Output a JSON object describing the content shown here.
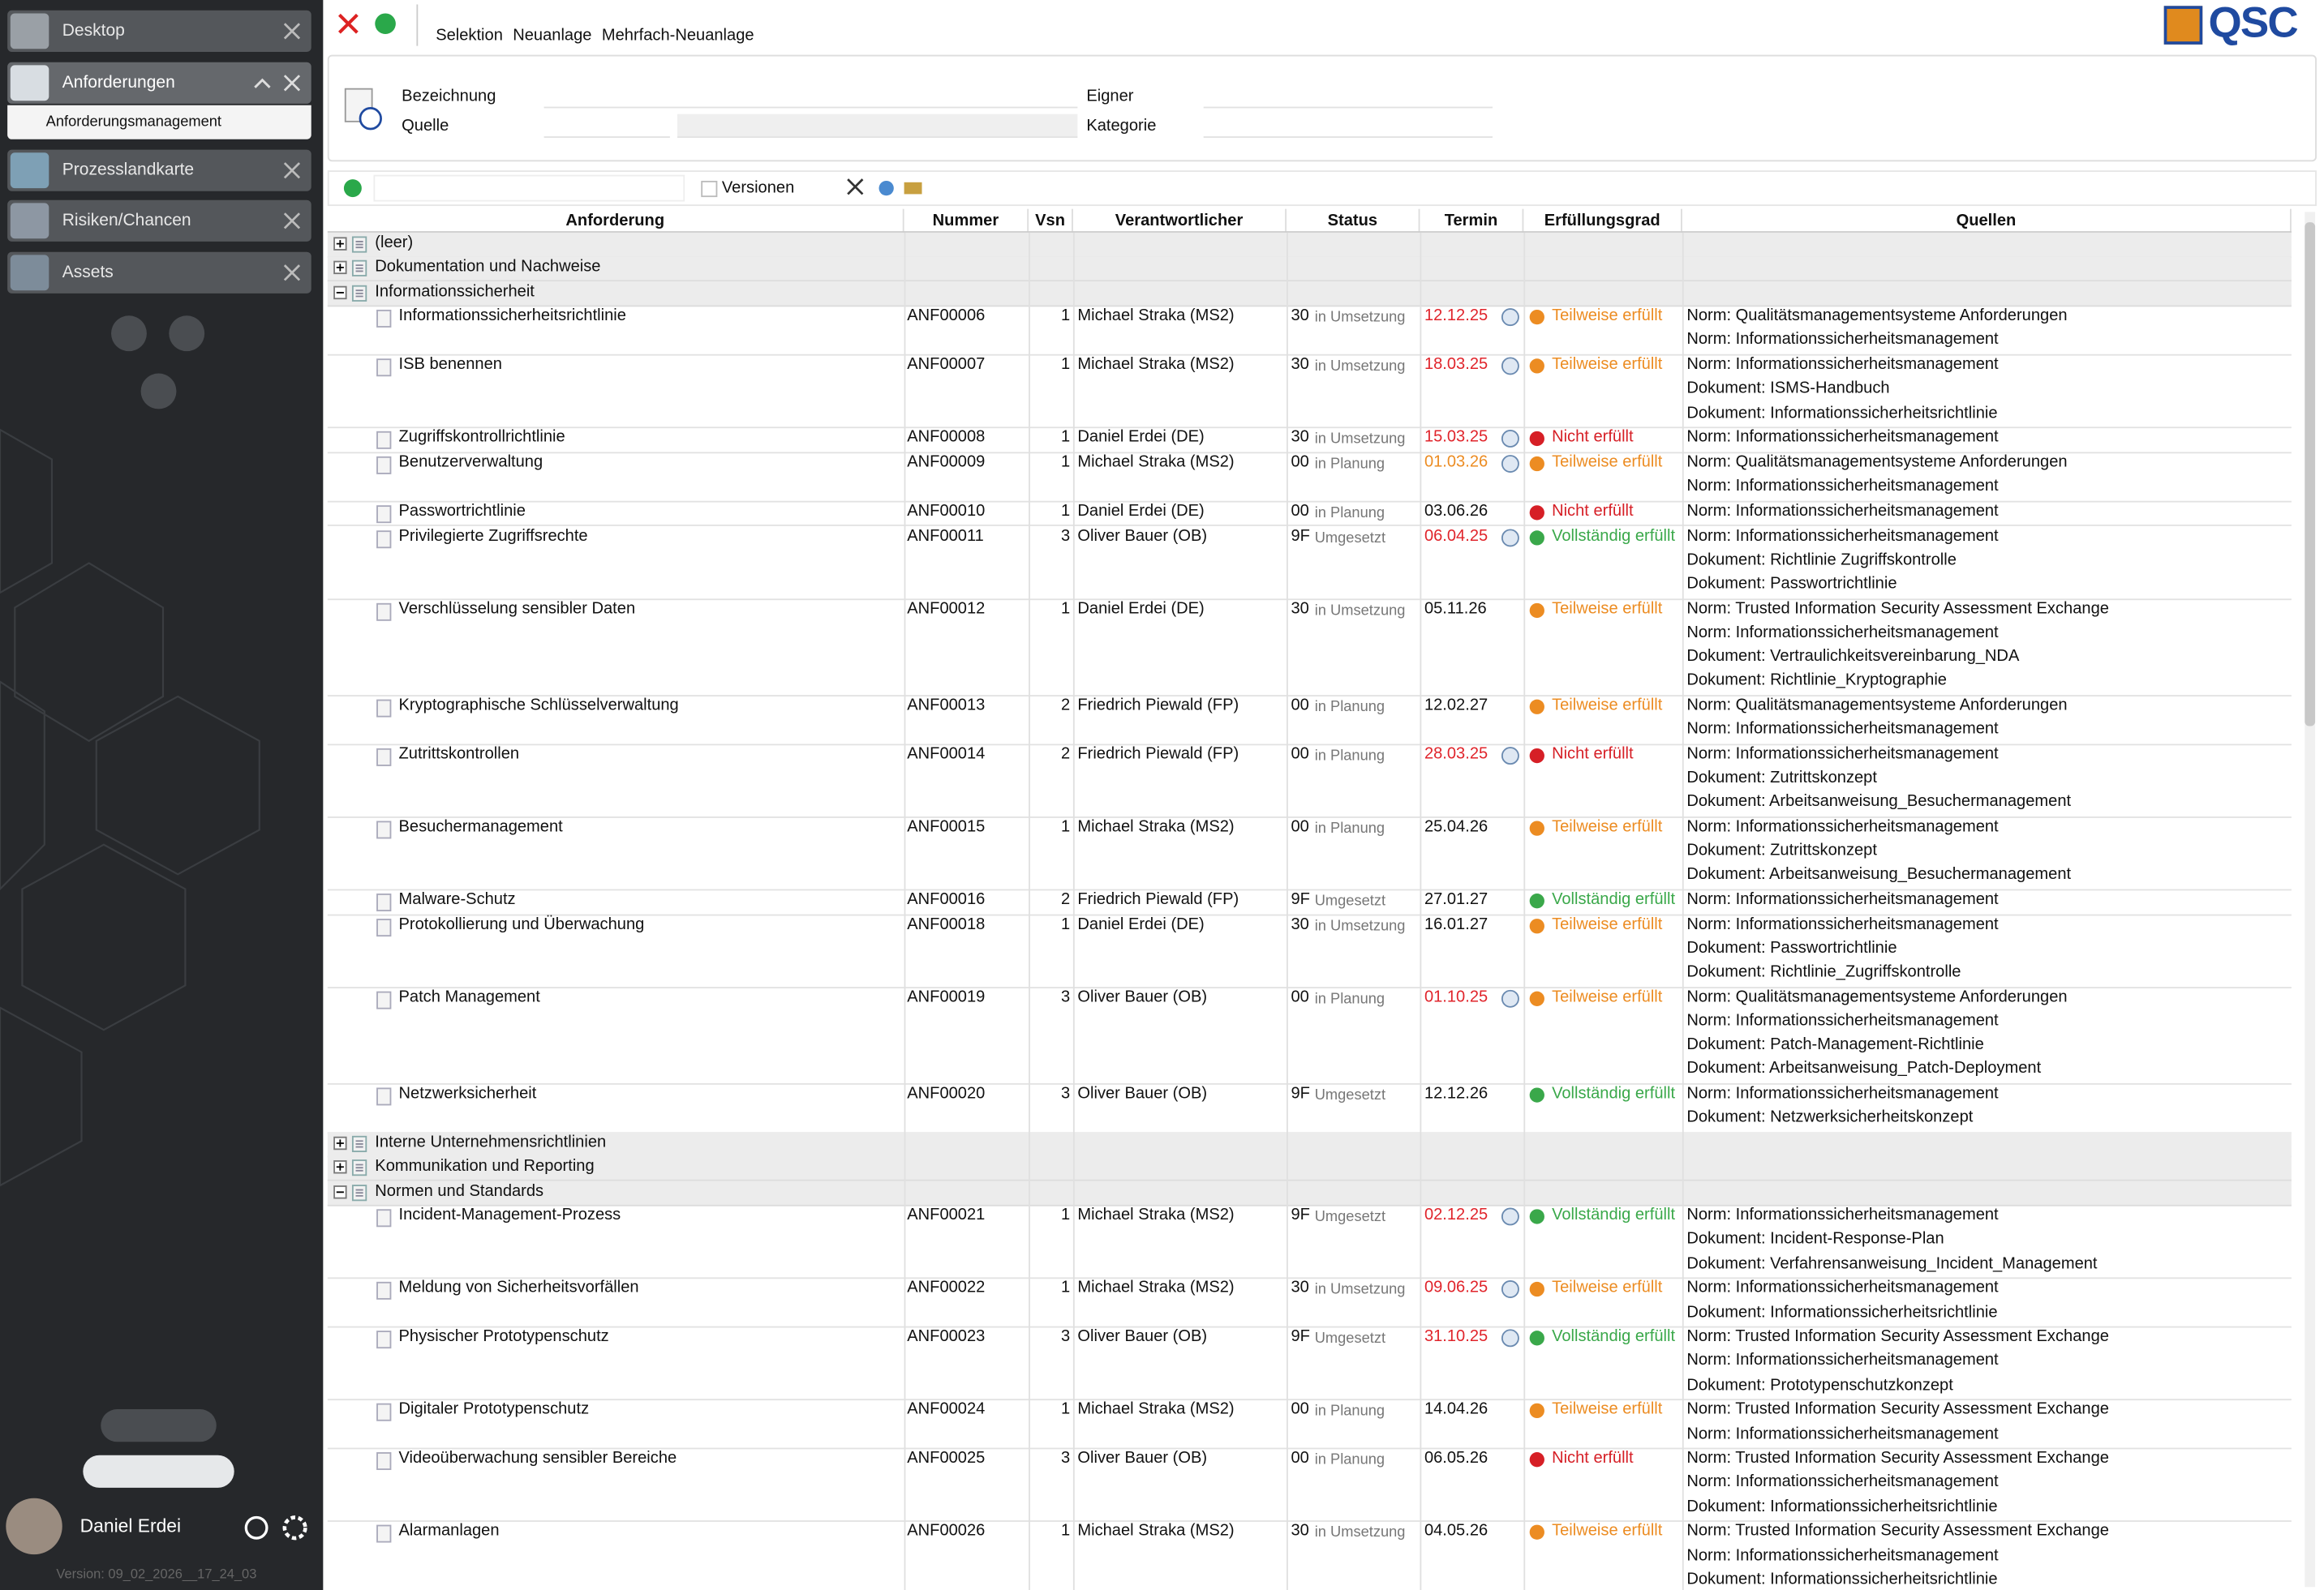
{
  "sidebar": {
    "tabs": [
      {
        "label": "Desktop"
      },
      {
        "label": "Anforderungen",
        "sub": "Anforderungsmanagement"
      },
      {
        "label": "Prozesslandkarte"
      },
      {
        "label": "Risiken/Chancen"
      },
      {
        "label": "Assets"
      }
    ],
    "user": "Daniel Erdei",
    "version": "Version: 09_02_2026__17_24_03"
  },
  "toolbar": {
    "buttons": [
      "Selektion",
      "Neuanlage",
      "Mehrfach-Neuanlage"
    ],
    "logo": "QSC"
  },
  "filter": {
    "bezeichnung": "Bezeichnung",
    "quelle": "Quelle",
    "eigner": "Eigner",
    "kategorie": "Kategorie"
  },
  "grid": {
    "versionen": "Versionen",
    "columns": [
      "Anforderung",
      "Nummer",
      "Vsn",
      "Verantwortlicher",
      "Status",
      "Termin",
      "Erfüllungsgrad",
      "Quellen"
    ],
    "groups": [
      {
        "name": "(leer)",
        "expanded": false,
        "rows": []
      },
      {
        "name": "Dokumentation und Nachweise",
        "expanded": false,
        "rows": []
      },
      {
        "name": "Informationssicherheit",
        "expanded": true,
        "rows": [
          {
            "name": "Informationssicherheitsrichtlinie",
            "nummer": "ANF00006",
            "vsn": 1,
            "owner": "Michael Straka (MS2)",
            "status_code": "30",
            "status": "in Umsetzung",
            "termin": "12.12.25",
            "termin_color": "#e0242b",
            "info": true,
            "grade": "Teilweise erfüllt",
            "grade_color": "#ec8c22",
            "sources": [
              "Norm: Qualitätsmanagementsysteme Anforderungen",
              "Norm: Informationssicherheitsmanagement"
            ]
          },
          {
            "name": "ISB benennen",
            "nummer": "ANF00007",
            "vsn": 1,
            "owner": "Michael Straka (MS2)",
            "status_code": "30",
            "status": "in Umsetzung",
            "termin": "18.03.25",
            "termin_color": "#e0242b",
            "info": true,
            "grade": "Teilweise erfüllt",
            "grade_color": "#ec8c22",
            "sources": [
              "Norm: Informationssicherheitsmanagement",
              "Dokument: ISMS-Handbuch",
              "Dokument: Informationssicherheitsrichtlinie"
            ]
          },
          {
            "name": "Zugriffskontrollrichtlinie",
            "nummer": "ANF00008",
            "vsn": 1,
            "owner": "Daniel Erdei (DE)",
            "status_code": "30",
            "status": "in Umsetzung",
            "termin": "15.03.25",
            "termin_color": "#e0242b",
            "info": true,
            "grade": "Nicht erfüllt",
            "grade_color": "#d61f26",
            "sources": [
              "Norm: Informationssicherheitsmanagement"
            ]
          },
          {
            "name": "Benutzerverwaltung",
            "nummer": "ANF00009",
            "vsn": 1,
            "owner": "Michael Straka (MS2)",
            "status_code": "00",
            "status": "in Planung",
            "termin": "01.03.26",
            "termin_color": "#ec8c22",
            "info": true,
            "grade": "Teilweise erfüllt",
            "grade_color": "#ec8c22",
            "sources": [
              "Norm: Qualitätsmanagementsysteme Anforderungen",
              "Norm: Informationssicherheitsmanagement"
            ]
          },
          {
            "name": "Passwortrichtlinie",
            "nummer": "ANF00010",
            "vsn": 1,
            "owner": "Daniel Erdei (DE)",
            "status_code": "00",
            "status": "in Planung",
            "termin": "03.06.26",
            "termin_color": "#111111",
            "info": false,
            "grade": "Nicht erfüllt",
            "grade_color": "#d61f26",
            "sources": [
              "Norm: Informationssicherheitsmanagement"
            ]
          },
          {
            "name": "Privilegierte Zugriffsrechte",
            "nummer": "ANF00011",
            "vsn": 3,
            "owner": "Oliver Bauer (OB)",
            "status_code": "9F",
            "status": "Umgesetzt",
            "termin": "06.04.25",
            "termin_color": "#e0242b",
            "info": true,
            "grade": "Vollständig erfüllt",
            "grade_color": "#3aa84a",
            "sources": [
              "Norm: Informationssicherheitsmanagement",
              "Dokument: Richtlinie Zugriffskontrolle",
              "Dokument: Passwortrichtlinie"
            ]
          },
          {
            "name": "Verschlüsselung sensibler Daten",
            "nummer": "ANF00012",
            "vsn": 1,
            "owner": "Daniel Erdei (DE)",
            "status_code": "30",
            "status": "in Umsetzung",
            "termin": "05.11.26",
            "termin_color": "#111111",
            "info": false,
            "grade": "Teilweise erfüllt",
            "grade_color": "#ec8c22",
            "sources": [
              "Norm: Trusted Information Security Assessment Exchange",
              "Norm: Informationssicherheitsmanagement",
              "Dokument: Vertraulichkeitsvereinbarung_NDA",
              "Dokument: Richtlinie_Kryptographie"
            ]
          },
          {
            "name": "Kryptographische Schlüsselverwaltung",
            "nummer": "ANF00013",
            "vsn": 2,
            "owner": "Friedrich Piewald (FP)",
            "status_code": "00",
            "status": "in Planung",
            "termin": "12.02.27",
            "termin_color": "#111111",
            "info": false,
            "grade": "Teilweise erfüllt",
            "grade_color": "#ec8c22",
            "sources": [
              "Norm: Qualitätsmanagementsysteme Anforderungen",
              "Norm: Informationssicherheitsmanagement"
            ]
          },
          {
            "name": "Zutrittskontrollen",
            "nummer": "ANF00014",
            "vsn": 2,
            "owner": "Friedrich Piewald (FP)",
            "status_code": "00",
            "status": "in Planung",
            "termin": "28.03.25",
            "termin_color": "#e0242b",
            "info": true,
            "grade": "Nicht erfüllt",
            "grade_color": "#d61f26",
            "sources": [
              "Norm: Informationssicherheitsmanagement",
              "Dokument: Zutrittskonzept",
              "Dokument: Arbeitsanweisung_Besuchermanagement"
            ]
          },
          {
            "name": "Besuchermanagement",
            "nummer": "ANF00015",
            "vsn": 1,
            "owner": "Michael Straka (MS2)",
            "status_code": "00",
            "status": "in Planung",
            "termin": "25.04.26",
            "termin_color": "#111111",
            "info": false,
            "grade": "Teilweise erfüllt",
            "grade_color": "#ec8c22",
            "sources": [
              "Norm: Informationssicherheitsmanagement",
              "Dokument: Zutrittskonzept",
              "Dokument: Arbeitsanweisung_Besuchermanagement"
            ]
          },
          {
            "name": "Malware-Schutz",
            "nummer": "ANF00016",
            "vsn": 2,
            "owner": "Friedrich Piewald (FP)",
            "status_code": "9F",
            "status": "Umgesetzt",
            "termin": "27.01.27",
            "termin_color": "#111111",
            "info": false,
            "grade": "Vollständig erfüllt",
            "grade_color": "#3aa84a",
            "sources": [
              "Norm: Informationssicherheitsmanagement"
            ]
          },
          {
            "name": "Protokollierung und Überwachung",
            "nummer": "ANF00018",
            "vsn": 1,
            "owner": "Daniel Erdei (DE)",
            "status_code": "30",
            "status": "in Umsetzung",
            "termin": "16.01.27",
            "termin_color": "#111111",
            "info": false,
            "grade": "Teilweise erfüllt",
            "grade_color": "#ec8c22",
            "sources": [
              "Norm: Informationssicherheitsmanagement",
              "Dokument: Passwortrichtlinie",
              "Dokument: Richtlinie_Zugriffskontrolle"
            ]
          },
          {
            "name": "Patch Management",
            "nummer": "ANF00019",
            "vsn": 3,
            "owner": "Oliver Bauer (OB)",
            "status_code": "00",
            "status": "in Planung",
            "termin": "01.10.25",
            "termin_color": "#e0242b",
            "info": true,
            "grade": "Teilweise erfüllt",
            "grade_color": "#ec8c22",
            "sources": [
              "Norm: Qualitätsmanagementsysteme Anforderungen",
              "Norm: Informationssicherheitsmanagement",
              "Dokument: Patch-Management-Richtlinie",
              "Dokument: Arbeitsanweisung_Patch-Deployment"
            ]
          },
          {
            "name": "Netzwerksicherheit",
            "nummer": "ANF00020",
            "vsn": 3,
            "owner": "Oliver Bauer (OB)",
            "status_code": "9F",
            "status": "Umgesetzt",
            "termin": "12.12.26",
            "termin_color": "#111111",
            "info": false,
            "grade": "Vollständig erfüllt",
            "grade_color": "#3aa84a",
            "sources": [
              "Norm: Informationssicherheitsmanagement",
              "Dokument: Netzwerksicherheitskonzept"
            ]
          }
        ]
      },
      {
        "name": "Interne Unternehmensrichtlinien",
        "expanded": false,
        "rows": []
      },
      {
        "name": "Kommunikation und Reporting",
        "expanded": false,
        "rows": []
      },
      {
        "name": "Normen und Standards",
        "expanded": true,
        "rows": [
          {
            "name": "Incident-Management-Prozess",
            "nummer": "ANF00021",
            "vsn": 1,
            "owner": "Michael Straka (MS2)",
            "status_code": "9F",
            "status": "Umgesetzt",
            "termin": "02.12.25",
            "termin_color": "#e0242b",
            "info": true,
            "grade": "Vollständig erfüllt",
            "grade_color": "#3aa84a",
            "sources": [
              "Norm: Informationssicherheitsmanagement",
              "Dokument: Incident-Response-Plan",
              "Dokument: Verfahrensanweisung_Incident_Management"
            ]
          },
          {
            "name": "Meldung von Sicherheitsvorfällen",
            "nummer": "ANF00022",
            "vsn": 1,
            "owner": "Michael Straka (MS2)",
            "status_code": "30",
            "status": "in Umsetzung",
            "termin": "09.06.25",
            "termin_color": "#e0242b",
            "info": true,
            "grade": "Teilweise erfüllt",
            "grade_color": "#ec8c22",
            "sources": [
              "Norm: Informationssicherheitsmanagement",
              "Dokument: Informationssicherheitsrichtlinie"
            ]
          },
          {
            "name": "Physischer Prototypenschutz",
            "nummer": "ANF00023",
            "vsn": 3,
            "owner": "Oliver Bauer (OB)",
            "status_code": "9F",
            "status": "Umgesetzt",
            "termin": "31.10.25",
            "termin_color": "#e0242b",
            "info": true,
            "grade": "Vollständig erfüllt",
            "grade_color": "#3aa84a",
            "sources": [
              "Norm: Trusted Information Security Assessment Exchange",
              "Norm: Informationssicherheitsmanagement",
              "Dokument: Prototypenschutzkonzept"
            ]
          },
          {
            "name": "Digitaler Prototypenschutz",
            "nummer": "ANF00024",
            "vsn": 1,
            "owner": "Michael Straka (MS2)",
            "status_code": "00",
            "status": "in Planung",
            "termin": "14.04.26",
            "termin_color": "#111111",
            "info": false,
            "grade": "Teilweise erfüllt",
            "grade_color": "#ec8c22",
            "sources": [
              "Norm: Trusted Information Security Assessment Exchange",
              "Norm: Informationssicherheitsmanagement"
            ]
          },
          {
            "name": "Videoüberwachung sensibler Bereiche",
            "nummer": "ANF00025",
            "vsn": 3,
            "owner": "Oliver Bauer (OB)",
            "status_code": "00",
            "status": "in Planung",
            "termin": "06.05.26",
            "termin_color": "#111111",
            "info": false,
            "grade": "Nicht erfüllt",
            "grade_color": "#d61f26",
            "sources": [
              "Norm: Trusted Information Security Assessment Exchange",
              "Norm: Informationssicherheitsmanagement",
              "Dokument: Informationssicherheitsrichtlinie"
            ]
          },
          {
            "name": "Alarmanlagen",
            "nummer": "ANF00026",
            "vsn": 1,
            "owner": "Michael Straka (MS2)",
            "status_code": "30",
            "status": "in Umsetzung",
            "termin": "04.05.26",
            "termin_color": "#111111",
            "info": false,
            "grade": "Teilweise erfüllt",
            "grade_color": "#ec8c22",
            "sources": [
              "Norm: Trusted Information Security Assessment Exchange",
              "Norm: Informationssicherheitsmanagement",
              "Dokument: Informationssicherheitsrichtlinie"
            ]
          }
        ]
      }
    ]
  }
}
